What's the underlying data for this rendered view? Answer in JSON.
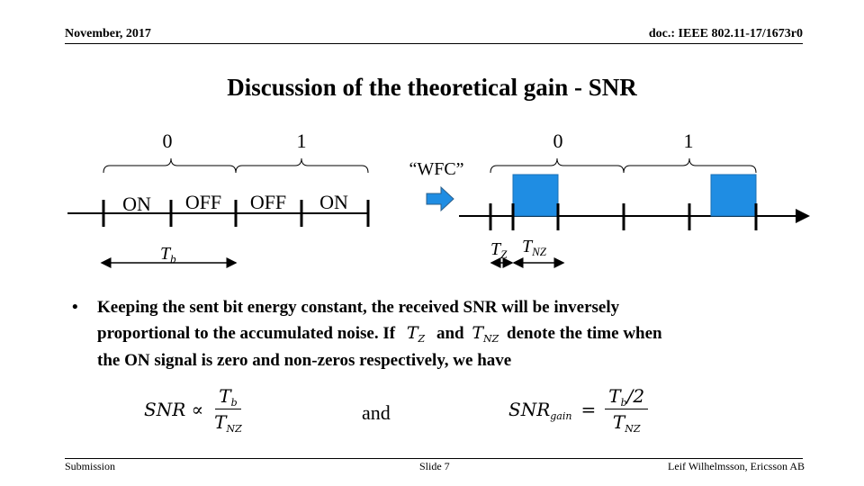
{
  "header": {
    "date": "November, 2017",
    "doc_id": "doc.: IEEE 802.11-17/1673r0"
  },
  "title": "Discussion of the theoretical gain - SNR",
  "diagram": {
    "bit_left_0": "0",
    "bit_left_1": "1",
    "bit_right_0": "0",
    "bit_right_1": "1",
    "wfc_label": "“WFC”",
    "seg_on_1": "ON",
    "seg_off_1": "OFF",
    "seg_off_2": "OFF",
    "seg_on_2": "ON",
    "tb_label": "T",
    "tb_sub": "b",
    "tz_label": "T",
    "tz_sub": "Z",
    "tnz_label": "T",
    "tnz_sub": "NZ",
    "pulse_color": "#1f8de3",
    "arrow_color": "#1f8de3"
  },
  "bullet": {
    "line1": "Keeping the sent bit energy constant, the received SNR will be inversely",
    "line2_a": "proportional to the accumulated noise. If",
    "line2_tz": "T",
    "line2_tz_sub": "Z",
    "line2_and": "and",
    "line2_tnz": "T",
    "line2_tnz_sub": "NZ",
    "line2_b": "denote the time when",
    "line3": "the ON signal is zero and non-zeros respectively, we have"
  },
  "equations": {
    "eq1_lhs": "SNR ∝",
    "eq1_num": "T",
    "eq1_num_sub": "b",
    "eq1_den": "T",
    "eq1_den_sub": "NZ",
    "between": "and",
    "eq2_lhs": "SNR",
    "eq2_lhs_sub": "gain",
    "eq2_eq": "=",
    "eq2_num": "T",
    "eq2_num_sub": "b",
    "eq2_num_tail": "/2",
    "eq2_den": "T",
    "eq2_den_sub": "NZ"
  },
  "footer": {
    "left": "Submission",
    "center": "Slide 7",
    "right": "Leif Wilhelmsson, Ericsson AB"
  }
}
